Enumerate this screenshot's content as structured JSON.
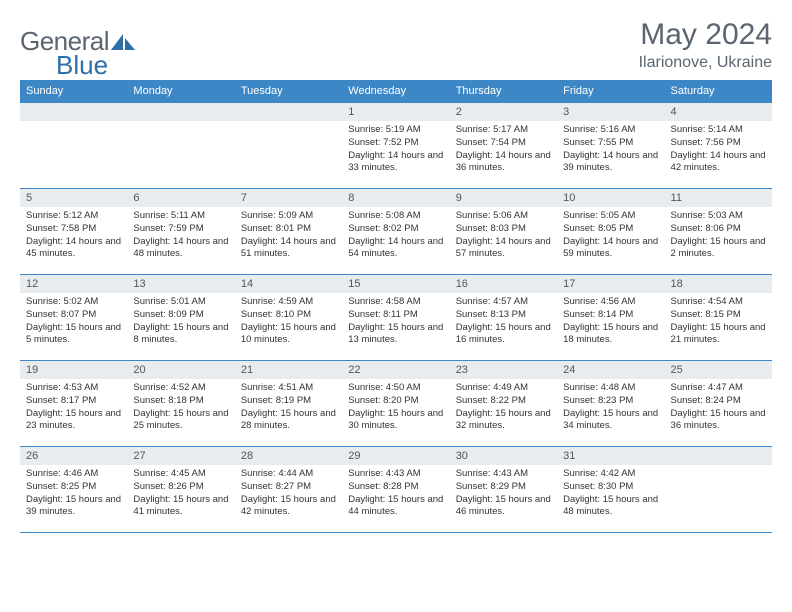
{
  "logo": {
    "text1": "General",
    "text2": "Blue"
  },
  "title": "May 2024",
  "location": "Ilarionove, Ukraine",
  "colors": {
    "header_bg": "#3d87c7",
    "header_text": "#ffffff",
    "daynum_bg": "#e9ecef",
    "border": "#3d87c7",
    "text": "#333333",
    "logo_gray": "#5a6570",
    "logo_blue": "#2f6fa8"
  },
  "weekdays": [
    "Sunday",
    "Monday",
    "Tuesday",
    "Wednesday",
    "Thursday",
    "Friday",
    "Saturday"
  ],
  "weeks": [
    [
      null,
      null,
      null,
      {
        "n": "1",
        "sr": "5:19 AM",
        "ss": "7:52 PM",
        "dl": "14 hours and 33 minutes."
      },
      {
        "n": "2",
        "sr": "5:17 AM",
        "ss": "7:54 PM",
        "dl": "14 hours and 36 minutes."
      },
      {
        "n": "3",
        "sr": "5:16 AM",
        "ss": "7:55 PM",
        "dl": "14 hours and 39 minutes."
      },
      {
        "n": "4",
        "sr": "5:14 AM",
        "ss": "7:56 PM",
        "dl": "14 hours and 42 minutes."
      }
    ],
    [
      {
        "n": "5",
        "sr": "5:12 AM",
        "ss": "7:58 PM",
        "dl": "14 hours and 45 minutes."
      },
      {
        "n": "6",
        "sr": "5:11 AM",
        "ss": "7:59 PM",
        "dl": "14 hours and 48 minutes."
      },
      {
        "n": "7",
        "sr": "5:09 AM",
        "ss": "8:01 PM",
        "dl": "14 hours and 51 minutes."
      },
      {
        "n": "8",
        "sr": "5:08 AM",
        "ss": "8:02 PM",
        "dl": "14 hours and 54 minutes."
      },
      {
        "n": "9",
        "sr": "5:06 AM",
        "ss": "8:03 PM",
        "dl": "14 hours and 57 minutes."
      },
      {
        "n": "10",
        "sr": "5:05 AM",
        "ss": "8:05 PM",
        "dl": "14 hours and 59 minutes."
      },
      {
        "n": "11",
        "sr": "5:03 AM",
        "ss": "8:06 PM",
        "dl": "15 hours and 2 minutes."
      }
    ],
    [
      {
        "n": "12",
        "sr": "5:02 AM",
        "ss": "8:07 PM",
        "dl": "15 hours and 5 minutes."
      },
      {
        "n": "13",
        "sr": "5:01 AM",
        "ss": "8:09 PM",
        "dl": "15 hours and 8 minutes."
      },
      {
        "n": "14",
        "sr": "4:59 AM",
        "ss": "8:10 PM",
        "dl": "15 hours and 10 minutes."
      },
      {
        "n": "15",
        "sr": "4:58 AM",
        "ss": "8:11 PM",
        "dl": "15 hours and 13 minutes."
      },
      {
        "n": "16",
        "sr": "4:57 AM",
        "ss": "8:13 PM",
        "dl": "15 hours and 16 minutes."
      },
      {
        "n": "17",
        "sr": "4:56 AM",
        "ss": "8:14 PM",
        "dl": "15 hours and 18 minutes."
      },
      {
        "n": "18",
        "sr": "4:54 AM",
        "ss": "8:15 PM",
        "dl": "15 hours and 21 minutes."
      }
    ],
    [
      {
        "n": "19",
        "sr": "4:53 AM",
        "ss": "8:17 PM",
        "dl": "15 hours and 23 minutes."
      },
      {
        "n": "20",
        "sr": "4:52 AM",
        "ss": "8:18 PM",
        "dl": "15 hours and 25 minutes."
      },
      {
        "n": "21",
        "sr": "4:51 AM",
        "ss": "8:19 PM",
        "dl": "15 hours and 28 minutes."
      },
      {
        "n": "22",
        "sr": "4:50 AM",
        "ss": "8:20 PM",
        "dl": "15 hours and 30 minutes."
      },
      {
        "n": "23",
        "sr": "4:49 AM",
        "ss": "8:22 PM",
        "dl": "15 hours and 32 minutes."
      },
      {
        "n": "24",
        "sr": "4:48 AM",
        "ss": "8:23 PM",
        "dl": "15 hours and 34 minutes."
      },
      {
        "n": "25",
        "sr": "4:47 AM",
        "ss": "8:24 PM",
        "dl": "15 hours and 36 minutes."
      }
    ],
    [
      {
        "n": "26",
        "sr": "4:46 AM",
        "ss": "8:25 PM",
        "dl": "15 hours and 39 minutes."
      },
      {
        "n": "27",
        "sr": "4:45 AM",
        "ss": "8:26 PM",
        "dl": "15 hours and 41 minutes."
      },
      {
        "n": "28",
        "sr": "4:44 AM",
        "ss": "8:27 PM",
        "dl": "15 hours and 42 minutes."
      },
      {
        "n": "29",
        "sr": "4:43 AM",
        "ss": "8:28 PM",
        "dl": "15 hours and 44 minutes."
      },
      {
        "n": "30",
        "sr": "4:43 AM",
        "ss": "8:29 PM",
        "dl": "15 hours and 46 minutes."
      },
      {
        "n": "31",
        "sr": "4:42 AM",
        "ss": "8:30 PM",
        "dl": "15 hours and 48 minutes."
      },
      null
    ]
  ],
  "labels": {
    "sunrise": "Sunrise:",
    "sunset": "Sunset:",
    "daylight": "Daylight:"
  }
}
